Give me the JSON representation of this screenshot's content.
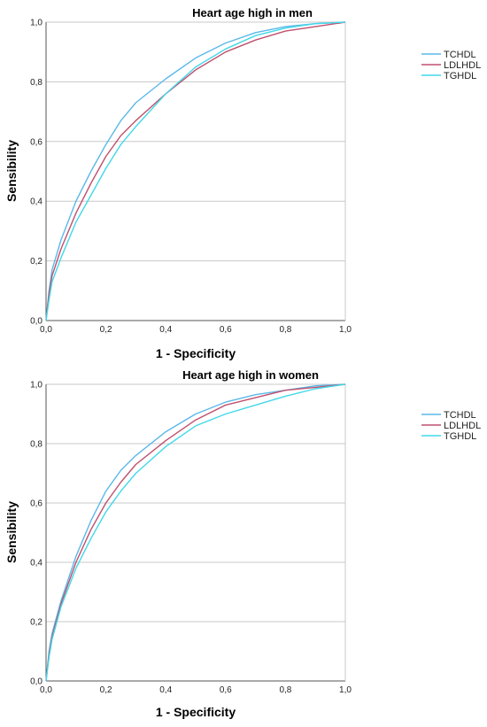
{
  "chart_data": [
    {
      "type": "line",
      "title": "Heart age high in men",
      "xlabel": "1 - Specificity",
      "ylabel": "Sensibility",
      "xlim": [
        0,
        1
      ],
      "ylim": [
        0,
        1
      ],
      "x_ticks": [
        "0,0",
        "0,2",
        "0,4",
        "0,6",
        "0,8",
        "1,0"
      ],
      "y_ticks": [
        "0,0",
        "0,2",
        "0,4",
        "0,6",
        "0,8",
        "1,0"
      ],
      "grid": "horizontal",
      "legend_position": "right",
      "series": [
        {
          "name": "TCHDL",
          "color": "#5bb8e8",
          "points": [
            [
              0,
              0
            ],
            [
              0.01,
              0.1
            ],
            [
              0.02,
              0.17
            ],
            [
              0.05,
              0.27
            ],
            [
              0.1,
              0.4
            ],
            [
              0.15,
              0.5
            ],
            [
              0.2,
              0.59
            ],
            [
              0.25,
              0.67
            ],
            [
              0.3,
              0.73
            ],
            [
              0.4,
              0.81
            ],
            [
              0.5,
              0.88
            ],
            [
              0.6,
              0.93
            ],
            [
              0.7,
              0.965
            ],
            [
              0.8,
              0.985
            ],
            [
              0.9,
              0.995
            ],
            [
              1,
              1
            ]
          ]
        },
        {
          "name": "LDLHDL",
          "color": "#c0506e",
          "points": [
            [
              0,
              0
            ],
            [
              0.01,
              0.09
            ],
            [
              0.02,
              0.15
            ],
            [
              0.05,
              0.24
            ],
            [
              0.1,
              0.36
            ],
            [
              0.15,
              0.46
            ],
            [
              0.2,
              0.55
            ],
            [
              0.25,
              0.62
            ],
            [
              0.3,
              0.67
            ],
            [
              0.4,
              0.76
            ],
            [
              0.5,
              0.84
            ],
            [
              0.6,
              0.9
            ],
            [
              0.7,
              0.94
            ],
            [
              0.8,
              0.97
            ],
            [
              0.9,
              0.985
            ],
            [
              1,
              1
            ]
          ]
        },
        {
          "name": "TGHDL",
          "color": "#41d8e8",
          "points": [
            [
              0,
              0
            ],
            [
              0.01,
              0.07
            ],
            [
              0.02,
              0.13
            ],
            [
              0.05,
              0.21
            ],
            [
              0.1,
              0.33
            ],
            [
              0.15,
              0.42
            ],
            [
              0.2,
              0.51
            ],
            [
              0.25,
              0.59
            ],
            [
              0.3,
              0.65
            ],
            [
              0.4,
              0.76
            ],
            [
              0.5,
              0.85
            ],
            [
              0.6,
              0.91
            ],
            [
              0.7,
              0.955
            ],
            [
              0.8,
              0.98
            ],
            [
              0.9,
              0.995
            ],
            [
              1,
              1
            ]
          ]
        }
      ]
    },
    {
      "type": "line",
      "title": "Heart age high in women",
      "xlabel": "1 - Specificity",
      "ylabel": "Sensibility",
      "xlim": [
        0,
        1
      ],
      "ylim": [
        0,
        1
      ],
      "x_ticks": [
        "0,0",
        "0,2",
        "0,4",
        "0,6",
        "0,8",
        "1,0"
      ],
      "y_ticks": [
        "0,0",
        "0,2",
        "0,4",
        "0,6",
        "0,8",
        "1,0"
      ],
      "grid": "horizontal",
      "legend_position": "right",
      "series": [
        {
          "name": "TCHDL",
          "color": "#5bb8e8",
          "points": [
            [
              0,
              0
            ],
            [
              0.01,
              0.1
            ],
            [
              0.02,
              0.16
            ],
            [
              0.05,
              0.27
            ],
            [
              0.1,
              0.42
            ],
            [
              0.15,
              0.54
            ],
            [
              0.2,
              0.64
            ],
            [
              0.25,
              0.71
            ],
            [
              0.3,
              0.76
            ],
            [
              0.4,
              0.84
            ],
            [
              0.5,
              0.9
            ],
            [
              0.6,
              0.94
            ],
            [
              0.7,
              0.965
            ],
            [
              0.8,
              0.98
            ],
            [
              0.9,
              0.995
            ],
            [
              1,
              1
            ]
          ]
        },
        {
          "name": "LDLHDL",
          "color": "#c0506e",
          "points": [
            [
              0,
              0
            ],
            [
              0.01,
              0.09
            ],
            [
              0.02,
              0.15
            ],
            [
              0.05,
              0.26
            ],
            [
              0.1,
              0.4
            ],
            [
              0.15,
              0.51
            ],
            [
              0.2,
              0.6
            ],
            [
              0.25,
              0.67
            ],
            [
              0.3,
              0.73
            ],
            [
              0.4,
              0.81
            ],
            [
              0.5,
              0.88
            ],
            [
              0.6,
              0.93
            ],
            [
              0.7,
              0.955
            ],
            [
              0.8,
              0.98
            ],
            [
              0.9,
              0.99
            ],
            [
              1,
              1
            ]
          ]
        },
        {
          "name": "TGHDL",
          "color": "#41d8e8",
          "points": [
            [
              0,
              0
            ],
            [
              0.01,
              0.08
            ],
            [
              0.02,
              0.14
            ],
            [
              0.05,
              0.25
            ],
            [
              0.1,
              0.38
            ],
            [
              0.15,
              0.48
            ],
            [
              0.2,
              0.57
            ],
            [
              0.25,
              0.64
            ],
            [
              0.3,
              0.7
            ],
            [
              0.4,
              0.79
            ],
            [
              0.5,
              0.86
            ],
            [
              0.6,
              0.9
            ],
            [
              0.7,
              0.93
            ],
            [
              0.8,
              0.96
            ],
            [
              0.9,
              0.985
            ],
            [
              1,
              1
            ]
          ]
        }
      ]
    }
  ]
}
